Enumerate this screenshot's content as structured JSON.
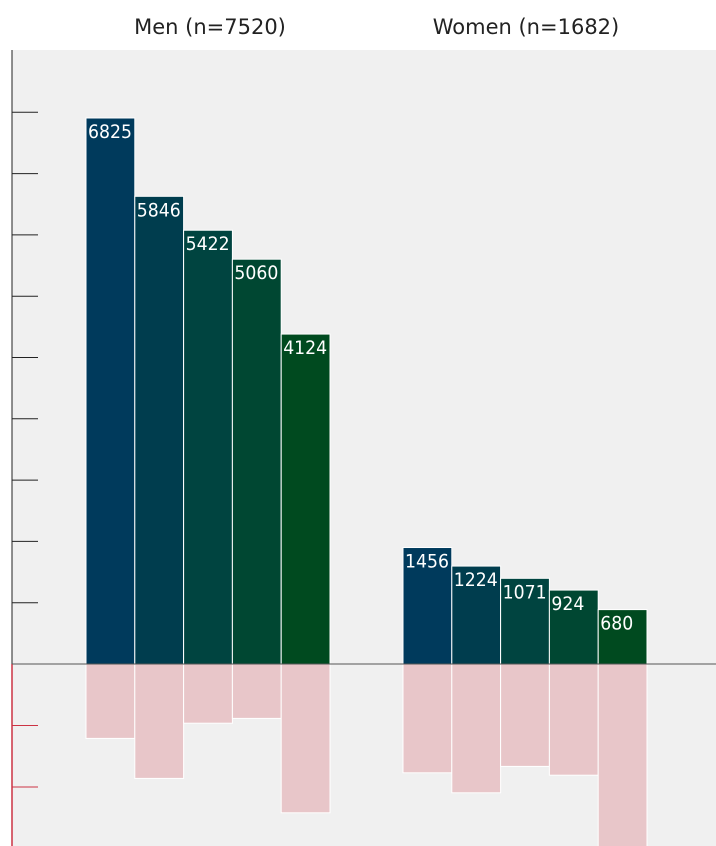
{
  "chart_data": {
    "type": "bar",
    "colors": {
      "positive": [
        "#003a5c",
        "#003d4e",
        "#004440",
        "#004732",
        "#004a1f"
      ],
      "negative": "#e8c6c9",
      "background": "#f0f0f0",
      "axis_positive": "#222222",
      "axis_negative": "#cc3344"
    },
    "ylim": [
      -2600,
      10000
    ],
    "groups": [
      {
        "title": "Men (n=7520)",
        "values": [
          6825,
          5846,
          5422,
          5060,
          4124
        ],
        "labels": [
          "6825",
          "5846",
          "5422",
          "5060",
          "4124"
        ],
        "negative_values": [
          -930,
          -1430,
          -740,
          -680,
          -1860
        ]
      },
      {
        "title": "Women (n=1682)",
        "values": [
          1456,
          1224,
          1071,
          924,
          680
        ],
        "labels": [
          "1456",
          "1224",
          "1071",
          "924",
          "680"
        ],
        "negative_values": [
          -1360,
          -1610,
          -1280,
          -1390,
          -2640
        ]
      }
    ]
  }
}
